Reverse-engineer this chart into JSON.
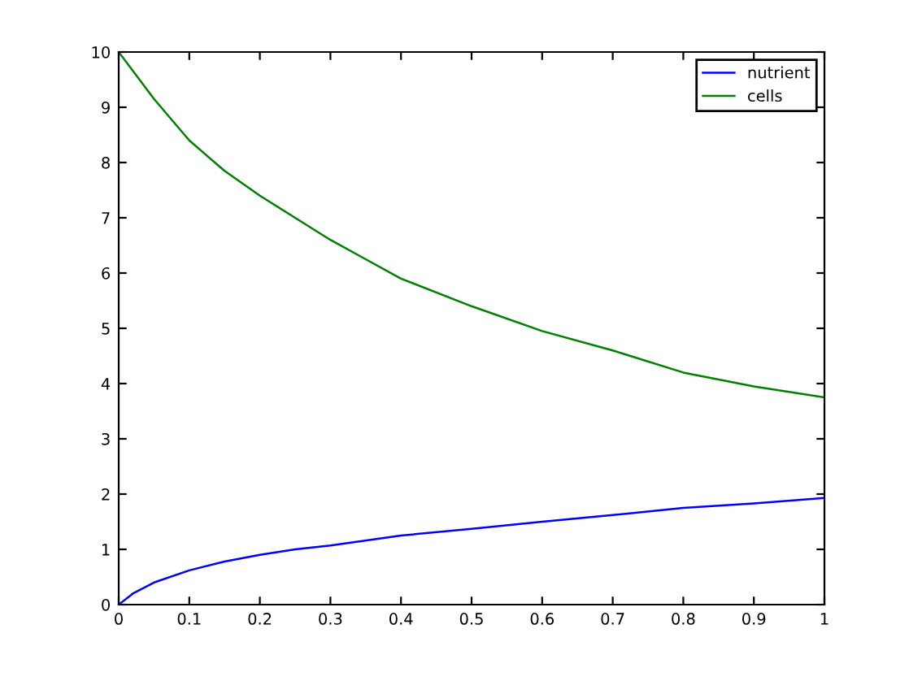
{
  "chart_data": {
    "type": "line",
    "xlim": [
      0,
      1
    ],
    "ylim": [
      0,
      10
    ],
    "xticks": [
      0,
      0.1,
      0.2,
      0.3,
      0.4,
      0.5,
      0.6,
      0.7,
      0.8,
      0.9,
      1
    ],
    "yticks": [
      0,
      1,
      2,
      3,
      4,
      5,
      6,
      7,
      8,
      9,
      10
    ],
    "grid": false,
    "legend": "top right",
    "marker": "none",
    "line_style": "solid",
    "series": [
      {
        "name": "nutrient",
        "color": "#0000ff",
        "x": [
          0,
          0.02,
          0.05,
          0.1,
          0.15,
          0.2,
          0.25,
          0.3,
          0.4,
          0.5,
          0.6,
          0.7,
          0.8,
          0.9,
          1.0
        ],
        "values": [
          0,
          0.2,
          0.4,
          0.62,
          0.78,
          0.9,
          1.0,
          1.07,
          1.25,
          1.37,
          1.5,
          1.62,
          1.75,
          1.83,
          1.93
        ]
      },
      {
        "name": "cells",
        "color": "#008000",
        "x": [
          0,
          0.05,
          0.1,
          0.15,
          0.2,
          0.25,
          0.3,
          0.35,
          0.4,
          0.5,
          0.6,
          0.7,
          0.8,
          0.9,
          1.0
        ],
        "values": [
          10,
          9.15,
          8.4,
          7.85,
          7.4,
          7.0,
          6.6,
          6.25,
          5.9,
          5.4,
          4.95,
          4.6,
          4.2,
          3.95,
          3.75
        ]
      }
    ]
  }
}
